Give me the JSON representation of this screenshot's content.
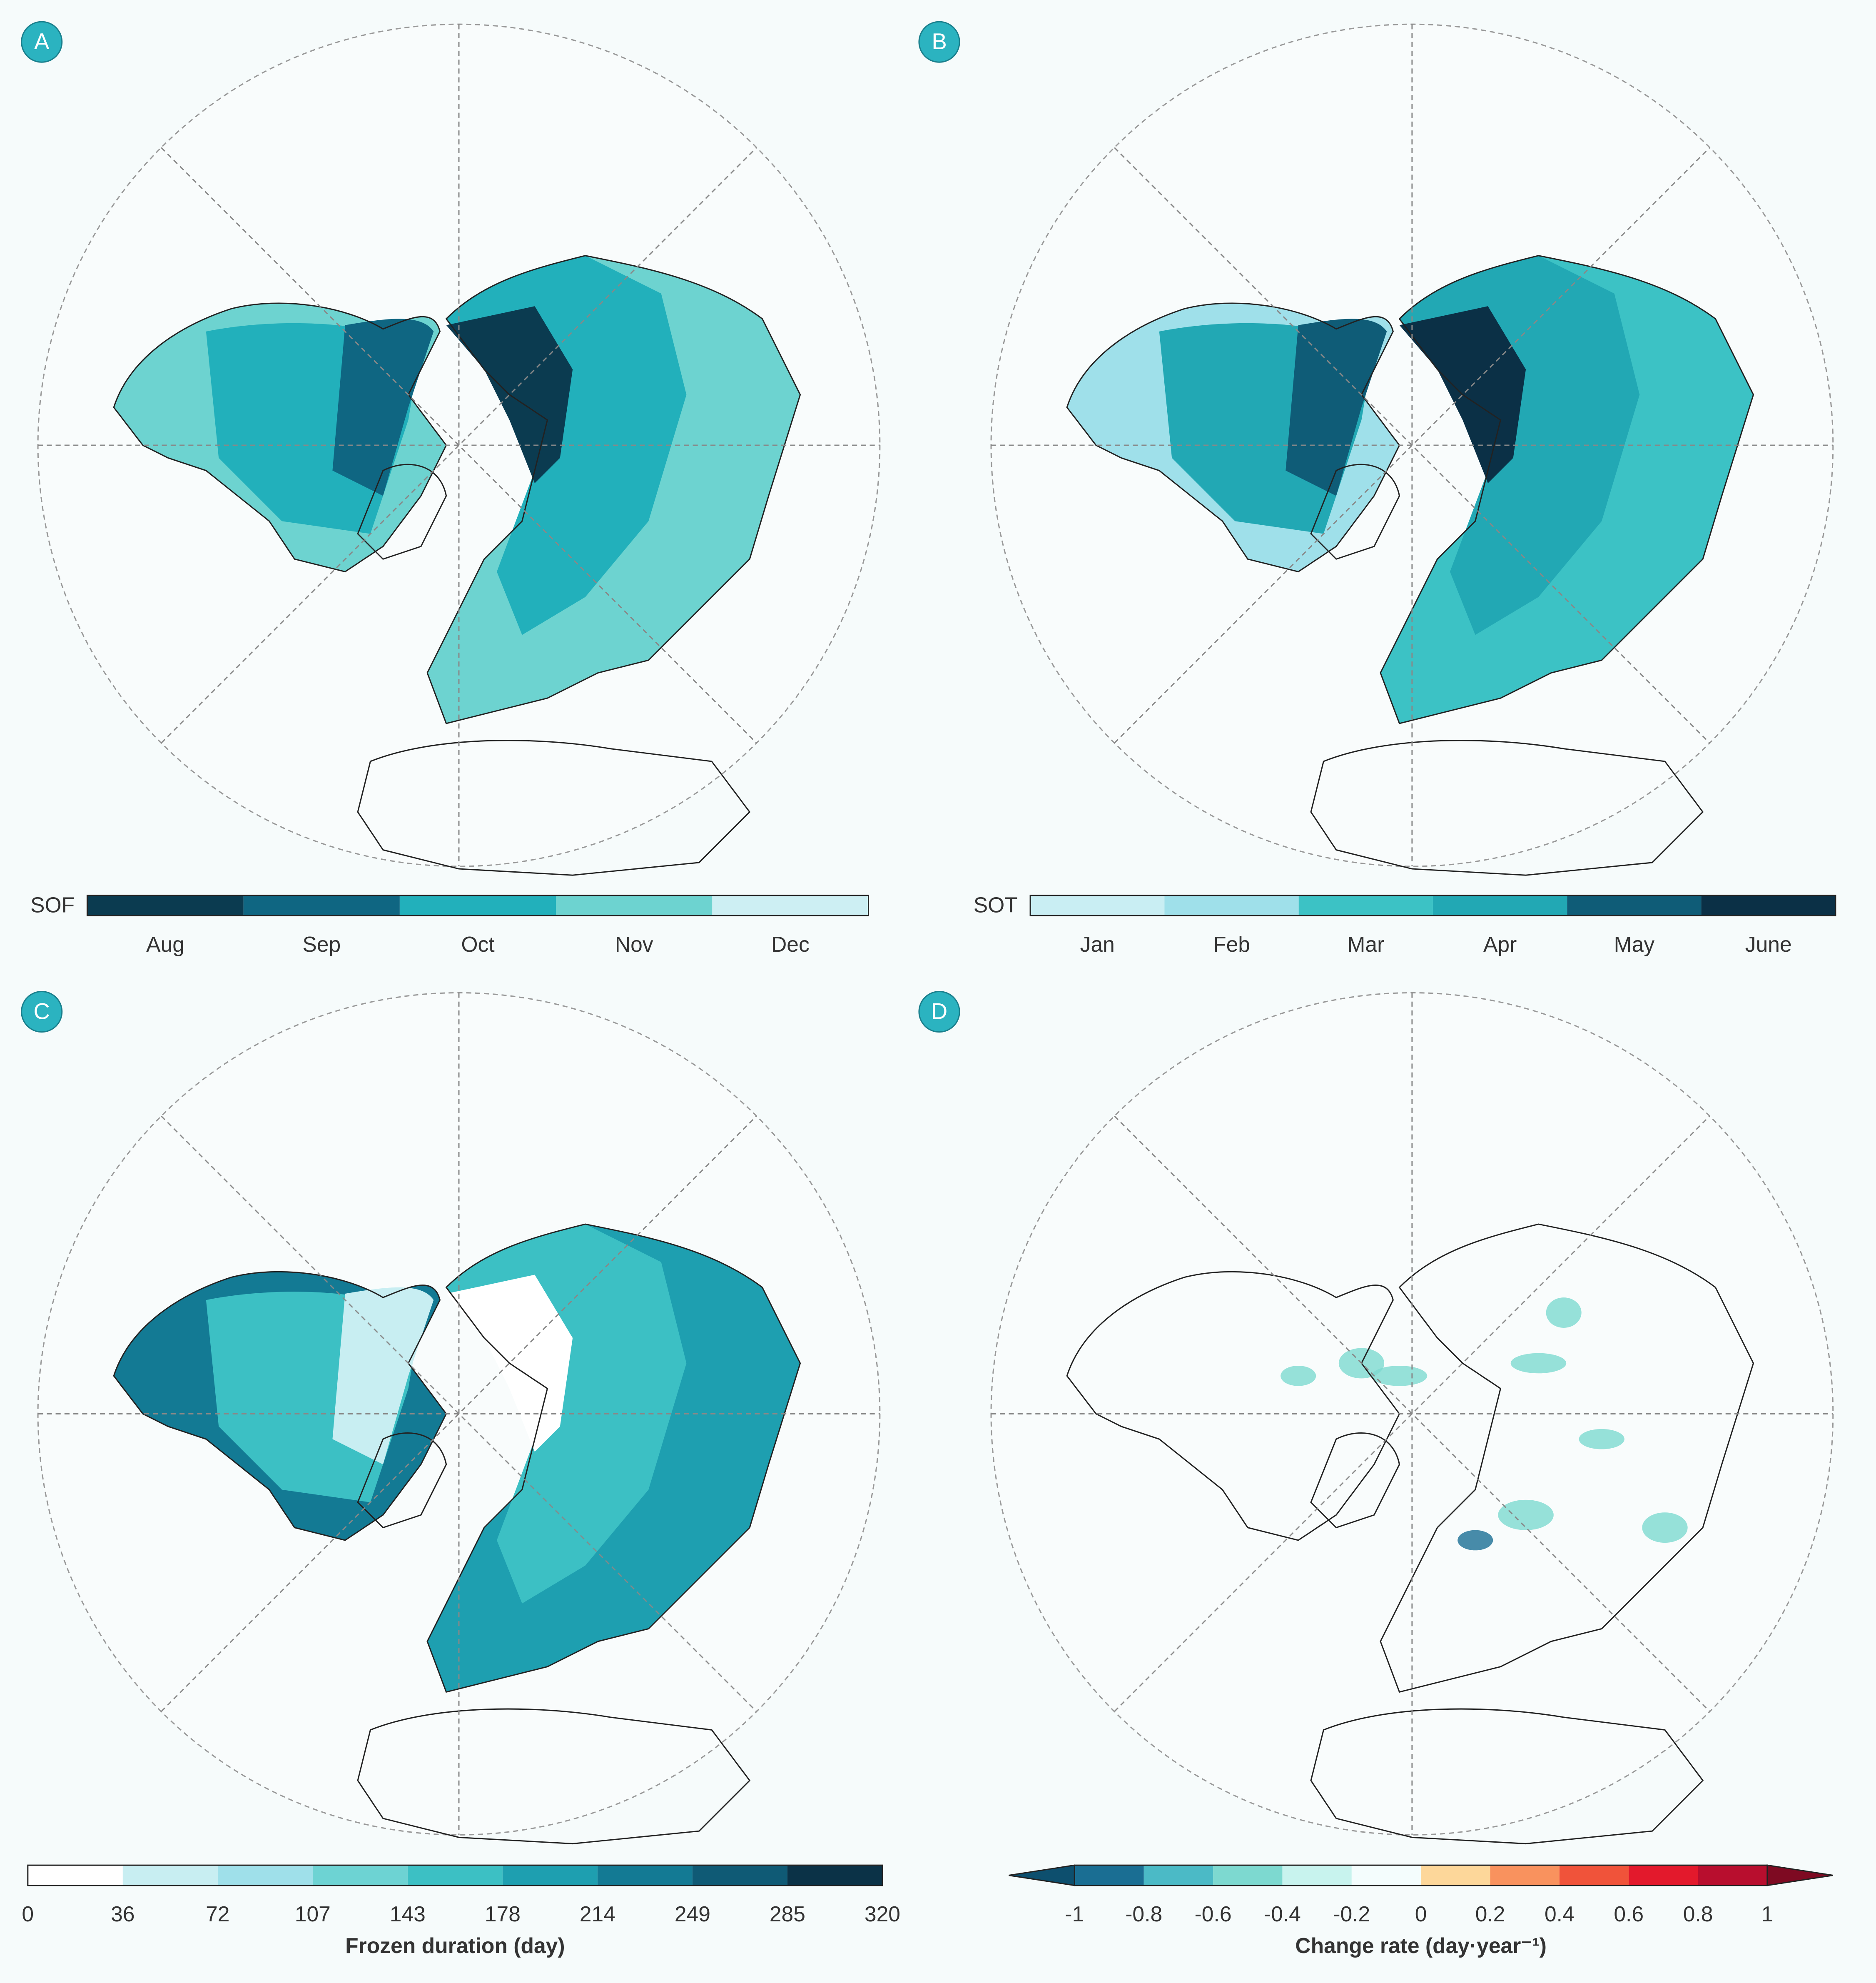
{
  "panels": [
    {
      "label": "A",
      "colorbar": {
        "title": "SOF",
        "labels": [
          "Aug",
          "Sep",
          "Oct",
          "Nov",
          "Dec"
        ],
        "colors": [
          "#0b3b50",
          "#0f6682",
          "#22b0bb",
          "#6dd3d0",
          "#cdeff3"
        ]
      }
    },
    {
      "label": "B",
      "colorbar": {
        "title": "SOT",
        "labels": [
          "Jan",
          "Feb",
          "Mar",
          "Apr",
          "May",
          "June"
        ],
        "colors": [
          "#c9eef3",
          "#9fe0ea",
          "#3cc2c5",
          "#22a8b4",
          "#0f5c77",
          "#0b3046"
        ]
      }
    },
    {
      "label": "C",
      "colorbar": {
        "title": "Frozen duration (day)",
        "labels": [
          0,
          36,
          72,
          107,
          143,
          178,
          214,
          249,
          285,
          320
        ],
        "colors": [
          "#ffffff",
          "#c8eef2",
          "#9fe0ea",
          "#6dd3d3",
          "#3cc0c4",
          "#1e9fb0",
          "#137a94",
          "#0f5a75",
          "#0b3247"
        ]
      }
    },
    {
      "label": "D",
      "colorbar": {
        "title": "Change rate (day·year⁻¹)",
        "labels": [
          -1,
          -0.8,
          -0.6,
          -0.4,
          -0.2,
          0,
          0.2,
          0.4,
          0.6,
          0.8,
          1
        ],
        "colors": [
          "#1a6e93",
          "#4bbac6",
          "#7dd9d0",
          "#c8f3ee",
          "#f4fdfd",
          "#fdd79a",
          "#f9925e",
          "#f0533a",
          "#e3192c",
          "#b80e2e"
        ],
        "extend_colors": [
          "#0d4f6e",
          "#7e0a22"
        ]
      }
    }
  ]
}
